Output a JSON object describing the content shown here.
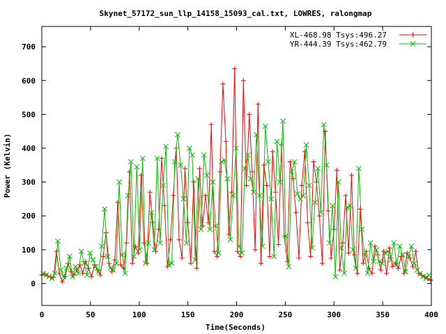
{
  "chart_data": {
    "type": "line",
    "title": "Skynet_57172_sun_llp_14158_15093_cal.txt, LOWRES, ralongmap",
    "xlabel": "Time(Seconds)",
    "ylabel": "Power (Kelvin)",
    "xlim": [
      0,
      400
    ],
    "ylim": [
      -65,
      760
    ],
    "x_ticks": [
      "0",
      "50",
      "100",
      "150",
      "200",
      "250",
      "300",
      "350",
      "400"
    ],
    "y_ticks": [
      "0",
      "100",
      "200",
      "300",
      "400",
      "500",
      "600",
      "700"
    ],
    "x_tick_values": [
      0,
      50,
      100,
      150,
      200,
      250,
      300,
      350,
      400
    ],
    "y_tick_values": [
      0,
      100,
      200,
      300,
      400,
      500,
      600,
      700
    ],
    "legend_position": "top-right",
    "grid": false,
    "series": [
      {
        "name": "XL-468.98 Tsys:496.27",
        "color": "#ff0000",
        "marker": "plus",
        "x": [
          0,
          3,
          6,
          9,
          12,
          15,
          18,
          21,
          24,
          27,
          30,
          33,
          36,
          39,
          42,
          45,
          48,
          51,
          54,
          57,
          60,
          63,
          66,
          69,
          72,
          75,
          78,
          81,
          84,
          87,
          90,
          93,
          96,
          99,
          102,
          105,
          108,
          111,
          114,
          117,
          120,
          123,
          126,
          129,
          132,
          135,
          138,
          141,
          144,
          147,
          150,
          153,
          156,
          159,
          162,
          165,
          168,
          171,
          174,
          177,
          180,
          183,
          186,
          189,
          192,
          195,
          198,
          201,
          204,
          207,
          210,
          213,
          216,
          219,
          222,
          225,
          228,
          231,
          234,
          237,
          240,
          243,
          246,
          249,
          252,
          255,
          258,
          261,
          264,
          267,
          270,
          273,
          276,
          279,
          282,
          285,
          288,
          291,
          294,
          297,
          300,
          303,
          306,
          309,
          312,
          315,
          318,
          321,
          324,
          327,
          330,
          333,
          336,
          339,
          342,
          345,
          348,
          351,
          354,
          357,
          360,
          363,
          366,
          369,
          372,
          375,
          378,
          381,
          384,
          387,
          390,
          393,
          396,
          399
        ],
        "values": [
          25,
          28,
          22,
          20,
          18,
          95,
          30,
          5,
          20,
          60,
          35,
          25,
          40,
          55,
          30,
          65,
          45,
          20,
          55,
          40,
          25,
          80,
          150,
          60,
          35,
          70,
          240,
          55,
          45,
          120,
          330,
          60,
          110,
          90,
          320,
          120,
          60,
          270,
          180,
          95,
          160,
          370,
          230,
          50,
          130,
          260,
          400,
          130,
          75,
          340,
          180,
          60,
          300,
          45,
          340,
          170,
          260,
          180,
          470,
          95,
          80,
          330,
          590,
          420,
          145,
          270,
          635,
          95,
          80,
          600,
          290,
          500,
          330,
          100,
          530,
          60,
          350,
          290,
          80,
          390,
          270,
          115,
          410,
          140,
          65,
          360,
          310,
          210,
          75,
          290,
          390,
          180,
          80,
          360,
          300,
          200,
          60,
          450,
          215,
          75,
          160,
          335,
          40,
          120,
          260,
          90,
          320,
          85,
          30,
          220,
          60,
          95,
          45,
          30,
          110,
          85,
          40,
          95,
          30,
          105,
          50,
          60,
          45,
          80,
          30,
          90,
          75,
          50,
          95,
          30,
          25,
          20,
          15,
          10
        ]
      },
      {
        "name": "YR-444.39 Tsys:462.79",
        "color": "#00c000",
        "marker": "cross",
        "x": [
          1.5,
          4.5,
          7.5,
          10.5,
          13.5,
          16.5,
          19.5,
          22.5,
          25.5,
          28.5,
          31.5,
          34.5,
          37.5,
          40.5,
          43.5,
          46.5,
          49.5,
          52.5,
          55.5,
          58.5,
          61.5,
          64.5,
          67.5,
          70.5,
          73.5,
          76.5,
          79.5,
          82.5,
          85.5,
          88.5,
          91.5,
          94.5,
          97.5,
          100.5,
          103.5,
          106.5,
          109.5,
          112.5,
          115.5,
          118.5,
          121.5,
          124.5,
          127.5,
          130.5,
          133.5,
          136.5,
          139.5,
          142.5,
          145.5,
          148.5,
          151.5,
          154.5,
          157.5,
          160.5,
          163.5,
          166.5,
          169.5,
          172.5,
          175.5,
          178.5,
          181.5,
          184.5,
          187.5,
          190.5,
          193.5,
          196.5,
          199.5,
          202.5,
          205.5,
          208.5,
          211.5,
          214.5,
          217.5,
          220.5,
          223.5,
          226.5,
          229.5,
          232.5,
          235.5,
          238.5,
          241.5,
          244.5,
          247.5,
          250.5,
          253.5,
          256.5,
          259.5,
          262.5,
          265.5,
          268.5,
          271.5,
          274.5,
          277.5,
          280.5,
          283.5,
          286.5,
          289.5,
          292.5,
          295.5,
          298.5,
          301.5,
          304.5,
          307.5,
          310.5,
          313.5,
          316.5,
          319.5,
          322.5,
          325.5,
          328.5,
          331.5,
          334.5,
          337.5,
          340.5,
          343.5,
          346.5,
          349.5,
          352.5,
          355.5,
          358.5,
          361.5,
          364.5,
          367.5,
          370.5,
          373.5,
          376.5,
          379.5,
          382.5,
          385.5,
          388.5,
          391.5,
          394.5,
          397.5
        ],
        "values": [
          30,
          25,
          20,
          15,
          30,
          125,
          40,
          20,
          45,
          80,
          20,
          50,
          30,
          95,
          60,
          25,
          90,
          70,
          50,
          35,
          110,
          220,
          80,
          45,
          40,
          60,
          300,
          85,
          30,
          260,
          360,
          80,
          345,
          100,
          370,
          60,
          120,
          210,
          100,
          370,
          120,
          290,
          405,
          55,
          60,
          360,
          440,
          350,
          250,
          120,
          400,
          380,
          70,
          310,
          160,
          380,
          320,
          160,
          300,
          170,
          90,
          360,
          365,
          310,
          130,
          260,
          400,
          110,
          90,
          340,
          380,
          310,
          270,
          440,
          260,
          110,
          465,
          360,
          250,
          80,
          420,
          300,
          480,
          140,
          50,
          330,
          360,
          265,
          250,
          260,
          410,
          290,
          105,
          240,
          340,
          210,
          470,
          350,
          120,
          230,
          20,
          300,
          105,
          30,
          225,
          230,
          100,
          45,
          340,
          160,
          85,
          30,
          120,
          65,
          100,
          65,
          60,
          90,
          95,
          70,
          120,
          55,
          110,
          85,
          35,
          80,
          110,
          60,
          40,
          30,
          20,
          15,
          25
        ]
      }
    ]
  }
}
